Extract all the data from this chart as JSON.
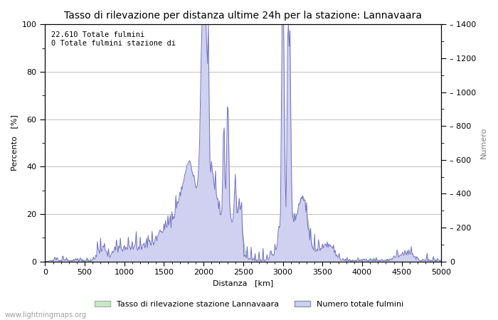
{
  "title": "Tasso di rilevazione per distanza ultime 24h per la stazione: Lannavaara",
  "xlabel": "Distanza   [km]",
  "ylabel_left": "Percento   [%]",
  "ylabel_right": "Numero",
  "xlim": [
    0,
    5000
  ],
  "ylim_left": [
    0,
    100
  ],
  "ylim_right": [
    0,
    1400
  ],
  "xticks": [
    0,
    500,
    1000,
    1500,
    2000,
    2500,
    3000,
    3500,
    4000,
    4500,
    5000
  ],
  "yticks_left": [
    0,
    20,
    40,
    60,
    80,
    100
  ],
  "yticks_right": [
    0,
    200,
    400,
    600,
    800,
    1000,
    1200,
    1400
  ],
  "annotation_line1": "22.610 Totale fulmini",
  "annotation_line2": "0 Totale fulmini stazione di",
  "legend_green": "Tasso di rilevazione stazione Lannavaara",
  "legend_blue": "Numero totale fulmini",
  "color_green_fill": "#c8e6c8",
  "color_green_line": "#90c890",
  "color_blue_fill": "#d0d0f0",
  "color_blue_line": "#7070c0",
  "background_color": "#ffffff",
  "grid_color": "#c0c0c0",
  "watermark": "www.lightningmaps.org",
  "title_fontsize": 10,
  "axis_fontsize": 8,
  "tick_fontsize": 8
}
